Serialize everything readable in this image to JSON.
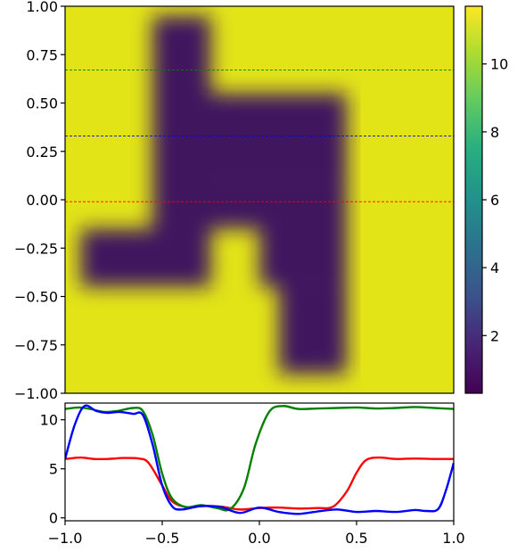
{
  "chart_data": [
    {
      "type": "heatmap",
      "title": "",
      "xlabel": "",
      "ylabel": "",
      "xlim": [
        -1.0,
        1.0
      ],
      "ylim": [
        -1.0,
        1.0
      ],
      "yticks": [
        "1.00",
        "0.75",
        "0.50",
        "0.25",
        "0.00",
        "−0.25",
        "−0.50",
        "−0.75",
        "−1.00"
      ],
      "ytick_values": [
        1.0,
        0.75,
        0.5,
        0.25,
        0.0,
        -0.25,
        -0.5,
        -0.75,
        -1.0
      ],
      "colormap": "viridis",
      "colorbar": {
        "range": [
          0.3,
          11.7
        ],
        "ticks": [
          "10",
          "8",
          "6",
          "4",
          "2"
        ],
        "tick_values": [
          10,
          8,
          6,
          4,
          2
        ]
      },
      "low_value_regions": [
        {
          "x": [
            -0.55,
            -0.25
          ],
          "y": [
            -0.15,
            0.95
          ]
        },
        {
          "x": [
            -0.25,
            0.45
          ],
          "y": [
            0.1,
            0.55
          ]
        },
        {
          "x": [
            -0.25,
            0.45
          ],
          "y": [
            -0.15,
            0.1
          ]
        },
        {
          "x": [
            -0.92,
            -0.25
          ],
          "y": [
            -0.45,
            -0.15
          ]
        },
        {
          "x": [
            0.0,
            0.45
          ],
          "y": [
            -0.45,
            -0.15
          ]
        },
        {
          "x": [
            0.1,
            0.45
          ],
          "y": [
            -0.9,
            -0.45
          ]
        }
      ],
      "value_range": {
        "low": 0.7,
        "high": 11.0
      },
      "reference_lines": [
        {
          "y": 0.67,
          "color": "#008000",
          "style": "dashed"
        },
        {
          "y": 0.33,
          "color": "#0000ff",
          "style": "dashed"
        },
        {
          "y": -0.01,
          "color": "#ff0000",
          "style": "dashed"
        }
      ]
    },
    {
      "type": "line",
      "title": "",
      "xlabel": "",
      "ylabel": "",
      "xlim": [
        -1.0,
        1.0
      ],
      "ylim": [
        -0.3,
        11.7
      ],
      "xticks": [
        "−1.0",
        "−0.5",
        "0.0",
        "0.5",
        "1.0"
      ],
      "xtick_values": [
        -1.0,
        -0.5,
        0.0,
        0.5,
        1.0
      ],
      "yticks": [
        "10",
        "5",
        "0"
      ],
      "ytick_values": [
        10,
        5,
        0
      ],
      "series": [
        {
          "color": "#ff0000",
          "x": [
            -1.0,
            -0.92,
            -0.85,
            -0.78,
            -0.7,
            -0.62,
            -0.57,
            -0.5,
            -0.45,
            -0.38,
            -0.3,
            -0.2,
            -0.1,
            0.0,
            0.1,
            0.2,
            0.3,
            0.38,
            0.45,
            0.5,
            0.55,
            0.62,
            0.7,
            0.8,
            0.9,
            1.0
          ],
          "y": [
            6.0,
            6.15,
            6.0,
            6.0,
            6.1,
            6.05,
            5.6,
            3.3,
            1.7,
            1.1,
            1.2,
            1.15,
            0.85,
            1.0,
            1.05,
            0.95,
            1.0,
            1.15,
            2.7,
            4.6,
            5.9,
            6.15,
            6.0,
            6.05,
            6.0,
            6.0
          ]
        },
        {
          "color": "#008000",
          "x": [
            -1.0,
            -0.93,
            -0.87,
            -0.8,
            -0.73,
            -0.65,
            -0.6,
            -0.55,
            -0.5,
            -0.45,
            -0.38,
            -0.3,
            -0.22,
            -0.15,
            -0.08,
            -0.02,
            0.05,
            0.12,
            0.2,
            0.3,
            0.4,
            0.5,
            0.6,
            0.7,
            0.8,
            0.9,
            1.0
          ],
          "y": [
            11.1,
            11.25,
            11.1,
            10.8,
            10.9,
            11.2,
            10.9,
            8.5,
            4.5,
            2.0,
            1.1,
            1.3,
            1.0,
            0.9,
            3.0,
            7.5,
            10.8,
            11.4,
            11.1,
            11.15,
            11.2,
            11.25,
            11.15,
            11.2,
            11.3,
            11.2,
            11.1
          ]
        },
        {
          "color": "#0000ff",
          "x": [
            -1.0,
            -0.95,
            -0.9,
            -0.84,
            -0.78,
            -0.72,
            -0.65,
            -0.6,
            -0.55,
            -0.5,
            -0.45,
            -0.4,
            -0.3,
            -0.2,
            -0.1,
            0.0,
            0.1,
            0.2,
            0.3,
            0.4,
            0.5,
            0.6,
            0.7,
            0.8,
            0.86,
            0.92,
            0.96,
            1.0
          ],
          "y": [
            6.0,
            9.5,
            11.4,
            10.9,
            10.7,
            10.8,
            10.6,
            10.5,
            7.5,
            3.3,
            1.2,
            0.85,
            1.2,
            1.1,
            0.5,
            1.05,
            0.6,
            0.4,
            0.65,
            0.85,
            0.6,
            0.7,
            0.6,
            0.8,
            0.7,
            0.9,
            2.8,
            5.6
          ]
        }
      ]
    }
  ]
}
